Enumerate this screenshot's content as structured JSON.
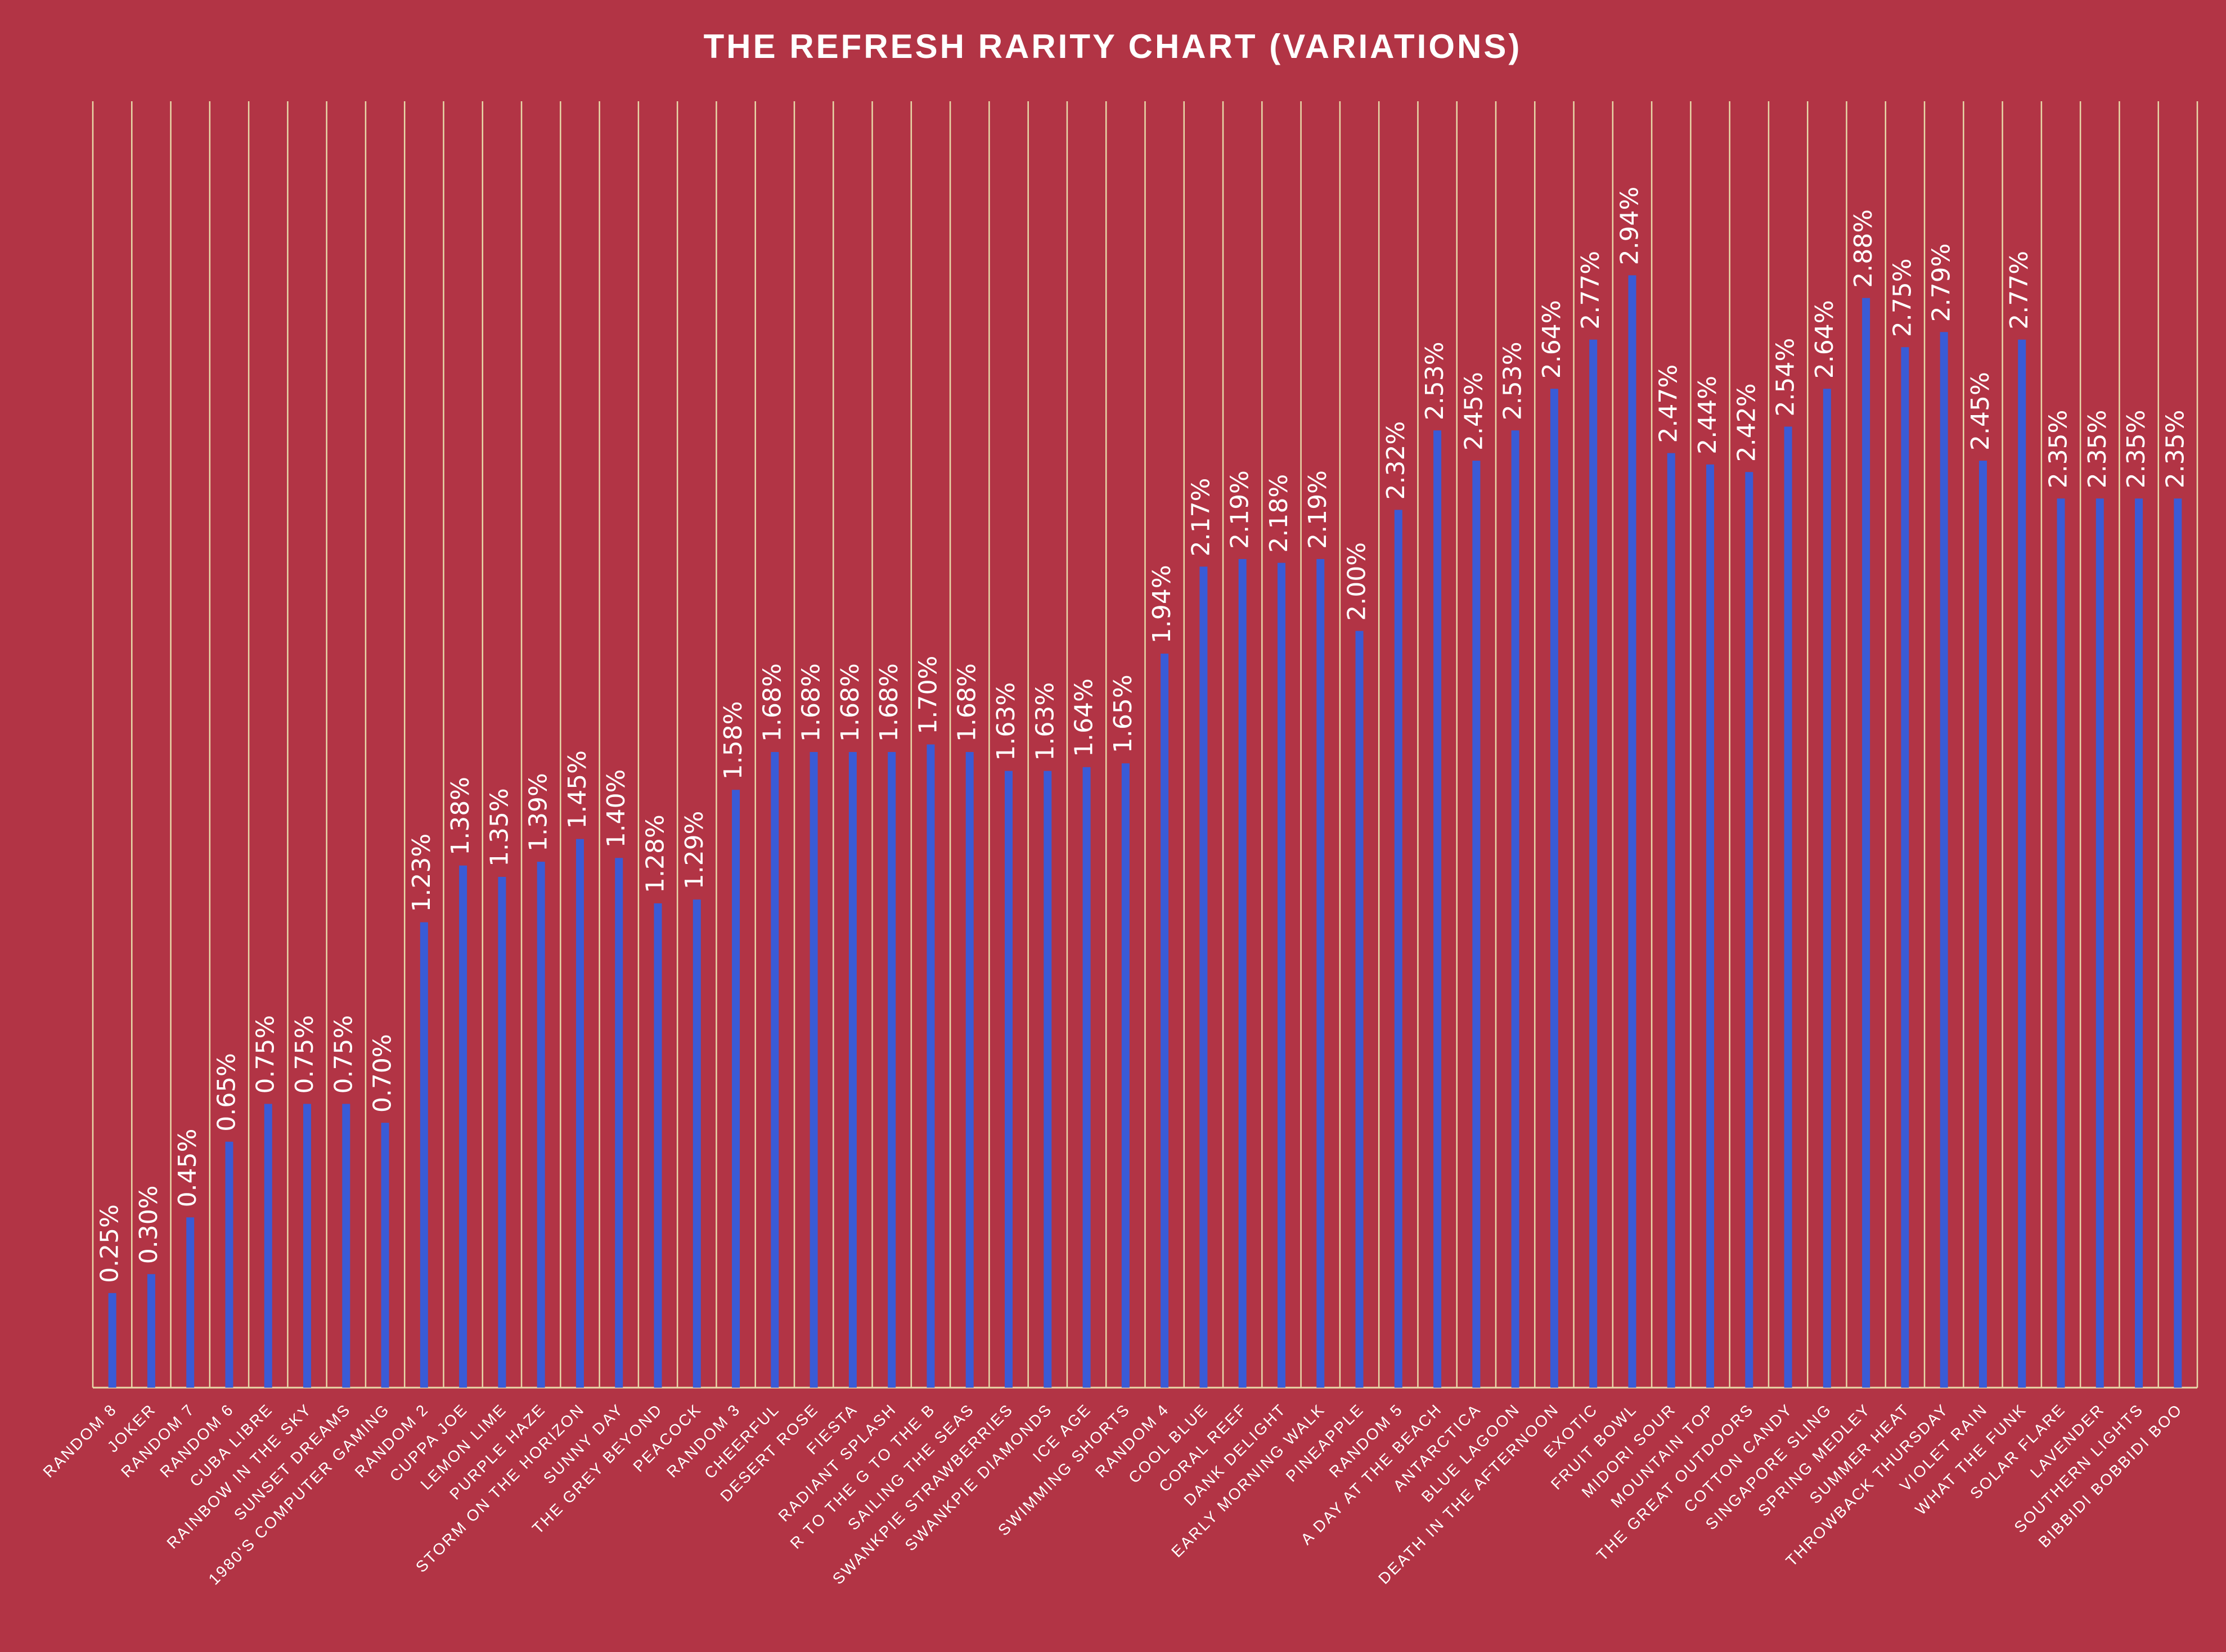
{
  "chart_data": {
    "type": "bar",
    "title": "THE REFRESH RARITY CHART (VARIATIONS)",
    "xlabel": "",
    "ylabel": "",
    "ylim": [
      0,
      3.4
    ],
    "grid": "vertical",
    "categories": [
      "RANDOM 8",
      "JOKER",
      "RANDOM 7",
      "RANDOM 6",
      "CUBA LIBRE",
      "RAINBOW IN THE SKY",
      "SUNSET DREAMS",
      "1980'S COMPUTER GAMING",
      "RANDOM 2",
      "CUPPA JOE",
      "LEMON LIME",
      "PURPLE HAZE",
      "STORM ON THE HORIZON",
      "SUNNY DAY",
      "THE GREY BEYOND",
      "PEACOCK",
      "RANDOM 3",
      "CHEERFUL",
      "DESERT ROSE",
      "FIESTA",
      "RADIANT SPLASH",
      "R TO THE G TO THE B",
      "SAILING THE SEAS",
      "SWANKPIE STRAWBERRIES",
      "SWANKPIE DIAMONDS",
      "ICE AGE",
      "SWIMMING SHORTS",
      "RANDOM 4",
      "COOL BLUE",
      "CORAL REEF",
      "DANK DELIGHT",
      "EARLY MORNING WALK",
      "PINEAPPLE",
      "RANDOM 5",
      "A DAY AT THE BEACH",
      "ANTARCTICA",
      "BLUE LAGOON",
      "DEATH IN THE AFTERNOON",
      "EXOTIC",
      "FRUIT BOWL",
      "MIDORI SOUR",
      "MOUNTAIN TOP",
      "THE GREAT OUTDOORS",
      "COTTON CANDY",
      "SINGAPORE SLING",
      "SPRING MEDLEY",
      "SUMMER HEAT",
      "THROWBACK THURSDAY",
      "VIOLET RAIN",
      "WHAT THE FUNK",
      "SOLAR FLARE",
      "LAVENDER",
      "SOUTHERN LIGHTS",
      "BIBBIDI BOBBIDI BOO"
    ],
    "values": [
      0.25,
      0.3,
      0.45,
      0.65,
      0.75,
      0.75,
      0.75,
      0.7,
      1.23,
      1.38,
      1.35,
      1.39,
      1.45,
      1.4,
      1.28,
      1.29,
      1.58,
      1.68,
      1.68,
      1.68,
      1.68,
      1.7,
      1.68,
      1.63,
      1.63,
      1.64,
      1.65,
      1.94,
      2.17,
      2.19,
      2.18,
      2.19,
      2.0,
      2.32,
      2.53,
      2.45,
      2.53,
      2.64,
      2.77,
      2.94,
      2.47,
      2.44,
      2.42,
      2.54,
      2.64,
      2.88,
      2.75,
      2.79,
      2.45,
      2.77,
      2.35,
      2.35,
      2.35,
      2.35
    ],
    "data_labels": [
      "0.25%",
      "0.30%",
      "0.45%",
      "0.65%",
      "0.75%",
      "0.75%",
      "0.75%",
      "0.70%",
      "1.23%",
      "1.38%",
      "1.35%",
      "1.39%",
      "1.45%",
      "1.40%",
      "1.28%",
      "1.29%",
      "1.58%",
      "1.68%",
      "1.68%",
      "1.68%",
      "1.68%",
      "1.70%",
      "1.68%",
      "1.63%",
      "1.63%",
      "1.64%",
      "1.65%",
      "1.94%",
      "2.17%",
      "2.19%",
      "2.18%",
      "2.19%",
      "2.00%",
      "2.32%",
      "2.53%",
      "2.45%",
      "2.53%",
      "2.64%",
      "2.77%",
      "2.94%",
      "2.47%",
      "2.44%",
      "2.42%",
      "2.54%",
      "2.64%",
      "2.88%",
      "2.75%",
      "2.79%",
      "2.45%",
      "2.77%",
      "2.35%",
      "2.35%",
      "2.35%",
      "2.35%"
    ]
  },
  "colors": {
    "background": "#B23445",
    "bar": "#3A5BD6",
    "gridline": "#E8D9A8",
    "text": "#FFFFFF"
  }
}
